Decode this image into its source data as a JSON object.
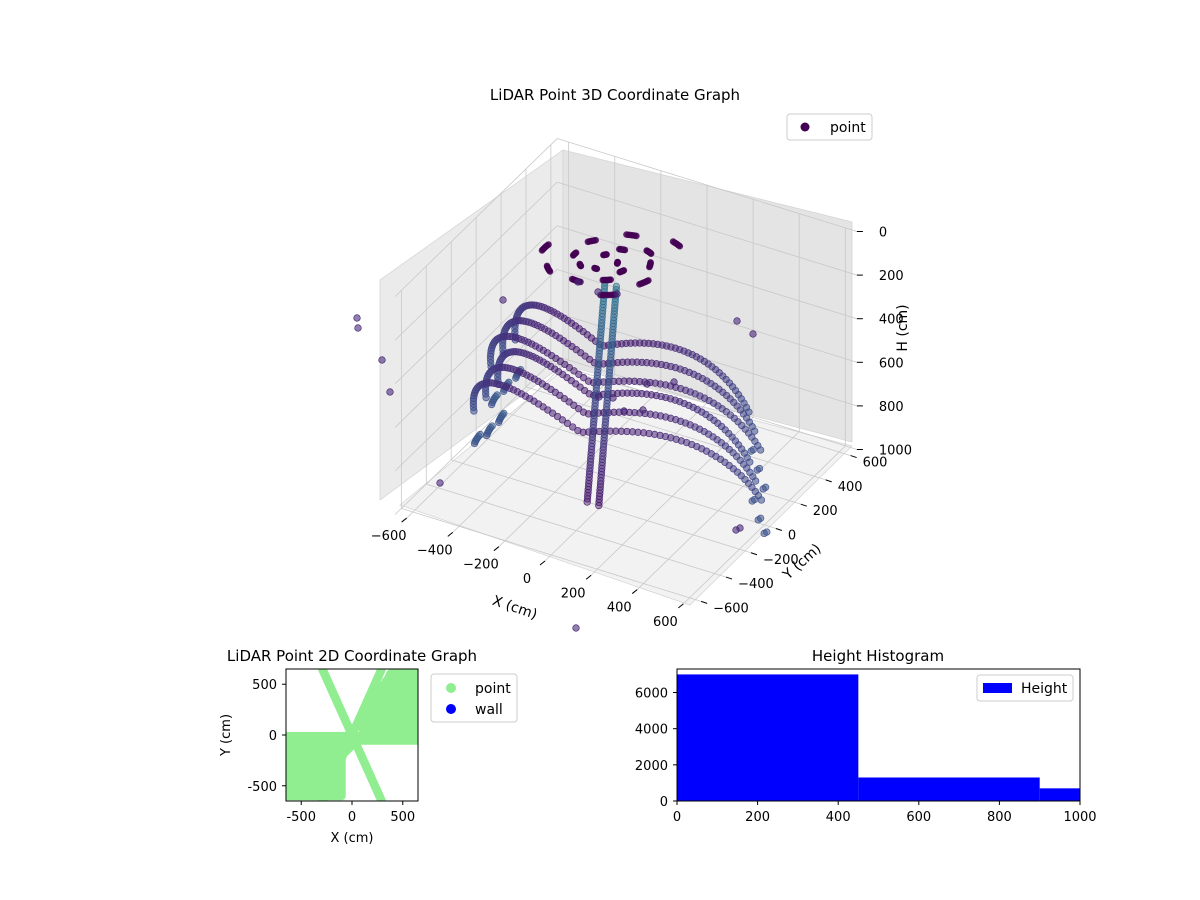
{
  "chart_data": [
    {
      "type": "scatter",
      "projection": "3d",
      "title": "LiDAR Point 3D Coordinate Graph",
      "xlabel": "X (cm)",
      "ylabel": "Y (cm)",
      "zlabel": "H (cm)",
      "xlim": [
        -650,
        650
      ],
      "ylim": [
        -650,
        650
      ],
      "zlim": [
        0,
        1000
      ],
      "zaxis_inverted": true,
      "x_ticks": [
        "−600",
        "−400",
        "−200",
        "0",
        "200",
        "400",
        "600"
      ],
      "y_ticks": [
        "−600",
        "−400",
        "−200",
        "0",
        "200",
        "400",
        "600"
      ],
      "z_ticks": [
        "0",
        "200",
        "400",
        "600",
        "800",
        "1000"
      ],
      "legend": {
        "position": "top-right",
        "entries": [
          "point"
        ]
      },
      "colormap": "viridis",
      "grid": true,
      "series": [
        {
          "name": "point",
          "description_of_structure": "ring arcs of lidar returns",
          "color": "#440154",
          "arcs": [
            {
              "radius": 520,
              "height": 20
            },
            {
              "radius": 560,
              "height": 80
            },
            {
              "radius": 600,
              "height": 140
            },
            {
              "radius": 560,
              "height": 200
            },
            {
              "radius": 600,
              "height": 260
            },
            {
              "radius": 640,
              "height": 320
            }
          ]
        }
      ]
    },
    {
      "type": "scatter",
      "title": "LiDAR Point 2D Coordinate Graph",
      "xlabel": "X (cm)",
      "ylabel": "Y (cm)",
      "xlim": [
        -650,
        650
      ],
      "ylim": [
        -650,
        650
      ],
      "x_ticks": [
        -500,
        0,
        500
      ],
      "y_ticks": [
        -500,
        0,
        500
      ],
      "legend": {
        "position": "outside-right",
        "entries": [
          "point",
          "wall"
        ]
      },
      "series": [
        {
          "name": "point",
          "color": "#90ee90"
        },
        {
          "name": "wall",
          "color": "#0000ff"
        }
      ]
    },
    {
      "type": "bar",
      "subtype": "histogram",
      "title": "Height Histogram",
      "xlim": [
        0,
        1000
      ],
      "ylim": [
        0,
        7300
      ],
      "x_ticks": [
        0,
        200,
        400,
        600,
        800,
        1000
      ],
      "y_ticks": [
        0,
        2000,
        4000,
        6000
      ],
      "legend": {
        "position": "top-right",
        "entries": [
          "Height"
        ]
      },
      "series": [
        {
          "name": "Height",
          "color": "#0000ff",
          "bins": [
            {
              "x0": 0,
              "x1": 450,
              "count": 7000
            },
            {
              "x0": 450,
              "x1": 900,
              "count": 1300
            },
            {
              "x0": 900,
              "x1": 1000,
              "count": 700
            }
          ]
        }
      ]
    }
  ]
}
